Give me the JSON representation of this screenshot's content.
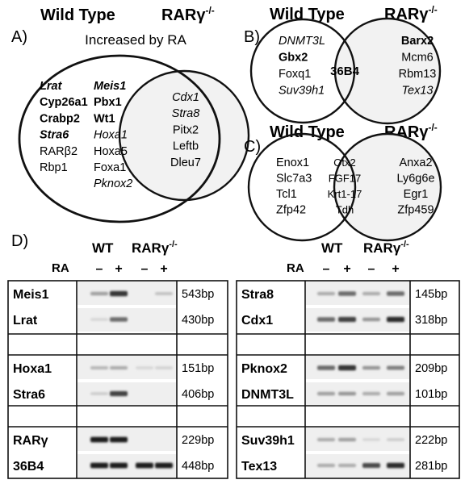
{
  "panel_a": {
    "letter": "A)",
    "wt_title": "Wild Type",
    "rar_title": "RARγ",
    "rar_sup": "-/-",
    "subtitle": "Increased by RA",
    "left_genes": [
      {
        "text": "Lrat",
        "bold": true,
        "italic": true
      },
      {
        "text": "Cyp26a1",
        "bold": true,
        "italic": false
      },
      {
        "text": "Crabp2",
        "bold": true,
        "italic": false
      },
      {
        "text": "Stra6",
        "bold": true,
        "italic": true
      },
      {
        "text": "RARβ2",
        "bold": false,
        "italic": false
      },
      {
        "text": "Rbp1",
        "bold": false,
        "italic": false
      }
    ],
    "mid_genes": [
      {
        "text": "Meis1",
        "bold": true,
        "italic": true
      },
      {
        "text": "Pbx1",
        "bold": true,
        "italic": false
      },
      {
        "text": "Wt1",
        "bold": true,
        "italic": false
      },
      {
        "text": "Hoxa1",
        "bold": false,
        "italic": true
      },
      {
        "text": "Hoxa5",
        "bold": false,
        "italic": false
      },
      {
        "text": "Foxa1",
        "bold": false,
        "italic": false
      },
      {
        "text": "Pknox2",
        "bold": false,
        "italic": true
      }
    ],
    "overlap_genes": [
      {
        "text": "Cdx1",
        "bold": false,
        "italic": true
      },
      {
        "text": "Stra8",
        "bold": false,
        "italic": true
      },
      {
        "text": "Pitx2",
        "bold": false,
        "italic": false
      },
      {
        "text": "Leftb",
        "bold": false,
        "italic": false
      },
      {
        "text": "Dleu7",
        "bold": false,
        "italic": false
      }
    ]
  },
  "panel_b": {
    "letter": "B)",
    "wt_title": "Wild Type",
    "rar_title": "RARγ",
    "rar_sup": "-/-",
    "left_genes": [
      {
        "text": "DNMT3L",
        "bold": false,
        "italic": true
      },
      {
        "text": "Gbx2",
        "bold": true,
        "italic": false
      },
      {
        "text": "Foxq1",
        "bold": false,
        "italic": false
      },
      {
        "text": "Suv39h1",
        "bold": false,
        "italic": true
      }
    ],
    "overlap_gene": "36B4",
    "right_genes": [
      {
        "text": "Barx2",
        "bold": true,
        "italic": false
      },
      {
        "text": "Mcm6",
        "bold": false,
        "italic": false
      },
      {
        "text": "Rbm13",
        "bold": false,
        "italic": false
      },
      {
        "text": "Tex13",
        "bold": false,
        "italic": true
      }
    ]
  },
  "panel_c": {
    "letter": "C)",
    "wt_title": "Wild Type",
    "rar_title": "RARγ",
    "rar_sup": "-/-",
    "left_genes": [
      "Enox1",
      "Slc7a3",
      "Tcl1",
      "Zfp42"
    ],
    "overlap_genes": [
      "Otx2",
      "FGF17",
      "Krt1-17",
      "Tdh"
    ],
    "right_genes": [
      "Anxa2",
      "Ly6g6e",
      "Egr1",
      "Zfp459"
    ]
  },
  "panel_d": {
    "letter": "D)",
    "wt_label": "WT",
    "rar_label": "RARγ",
    "rar_sup": "-/-",
    "ra_label": "RA",
    "lane_signs": [
      "–",
      "+",
      "–",
      "+"
    ],
    "left_groups": [
      {
        "rows": [
          {
            "gene": "Meis1",
            "bp": "543bp",
            "bands": [
              0.35,
              0.85,
              0.0,
              0.2
            ]
          },
          {
            "gene": "Lrat",
            "bp": "430bp",
            "bands": [
              0.1,
              0.6,
              0.0,
              0.0
            ]
          }
        ]
      },
      {
        "rows": [
          {
            "gene": "Hoxa1",
            "bp": "151bp",
            "bands": [
              0.25,
              0.3,
              0.1,
              0.12
            ]
          },
          {
            "gene": "Stra6",
            "bp": "406bp",
            "bands": [
              0.15,
              0.8,
              0.0,
              0.0
            ]
          }
        ]
      },
      {
        "rows": [
          {
            "gene": "RARγ",
            "bp": "229bp",
            "bands": [
              0.95,
              0.95,
              0.0,
              0.0
            ]
          },
          {
            "gene": "36B4",
            "bp": "448bp",
            "bands": [
              0.95,
              0.95,
              0.95,
              0.95
            ]
          }
        ]
      }
    ],
    "right_groups": [
      {
        "rows": [
          {
            "gene": "Stra8",
            "bp": "145bp",
            "bands": [
              0.3,
              0.6,
              0.3,
              0.6
            ]
          },
          {
            "gene": "Cdx1",
            "bp": "318bp",
            "bands": [
              0.6,
              0.8,
              0.4,
              0.9
            ]
          }
        ]
      },
      {
        "rows": [
          {
            "gene": "Pknox2",
            "bp": "209bp",
            "bands": [
              0.6,
              0.85,
              0.4,
              0.5
            ]
          },
          {
            "gene": "DNMT3L",
            "bp": "101bp",
            "bands": [
              0.35,
              0.4,
              0.3,
              0.35
            ]
          }
        ]
      },
      {
        "rows": [
          {
            "gene": "Suv39h1",
            "bp": "222bp",
            "bands": [
              0.3,
              0.35,
              0.1,
              0.15
            ]
          },
          {
            "gene": "Tex13",
            "bp": "281bp",
            "bands": [
              0.3,
              0.3,
              0.75,
              0.9
            ]
          }
        ]
      }
    ]
  }
}
